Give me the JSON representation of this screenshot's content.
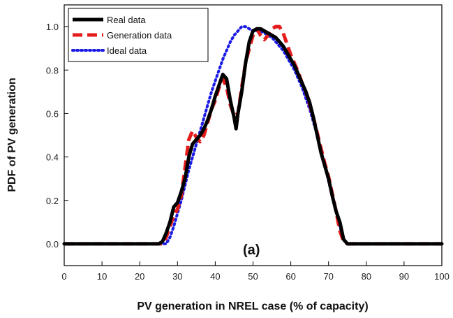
{
  "chart_data": {
    "type": "line",
    "title": "",
    "xlabel": "PV generation in NREL case (% of capacity)",
    "ylabel": "PDF of PV generation",
    "xlim": [
      0,
      100
    ],
    "ylim": [
      -0.1,
      1.1
    ],
    "xticks": [
      0,
      10,
      20,
      30,
      40,
      50,
      60,
      70,
      80,
      90,
      100
    ],
    "yticks": [
      0.0,
      0.2,
      0.4,
      0.6,
      0.8,
      1.0
    ],
    "xtick_labels": [
      "0",
      "10",
      "20",
      "30",
      "40",
      "50",
      "60",
      "70",
      "80",
      "90",
      "100"
    ],
    "ytick_labels": [
      "0.0",
      "0.2",
      "0.4",
      "0.6",
      "0.8",
      "1.0"
    ],
    "grid": false,
    "legend_position": "top-left",
    "annotation": "(a)",
    "series": [
      {
        "name": "Real data",
        "color": "#000000",
        "style": "solid",
        "points": [
          [
            0,
            0
          ],
          [
            25,
            0
          ],
          [
            26,
            0.01
          ],
          [
            27,
            0.05
          ],
          [
            28,
            0.1
          ],
          [
            29,
            0.17
          ],
          [
            30,
            0.19
          ],
          [
            31,
            0.24
          ],
          [
            32,
            0.3
          ],
          [
            33,
            0.4
          ],
          [
            34,
            0.46
          ],
          [
            35,
            0.48
          ],
          [
            36,
            0.5
          ],
          [
            37,
            0.53
          ],
          [
            38,
            0.57
          ],
          [
            39,
            0.62
          ],
          [
            40,
            0.68
          ],
          [
            41,
            0.73
          ],
          [
            42,
            0.78
          ],
          [
            43,
            0.76
          ],
          [
            44,
            0.66
          ],
          [
            45,
            0.58
          ],
          [
            45.5,
            0.53
          ],
          [
            46,
            0.6
          ],
          [
            47,
            0.7
          ],
          [
            48,
            0.83
          ],
          [
            49,
            0.93
          ],
          [
            50,
            0.98
          ],
          [
            51,
            0.99
          ],
          [
            52,
            0.99
          ],
          [
            53,
            0.98
          ],
          [
            54,
            0.97
          ],
          [
            55,
            0.96
          ],
          [
            56,
            0.95
          ],
          [
            57,
            0.93
          ],
          [
            58,
            0.91
          ],
          [
            59,
            0.88
          ],
          [
            60,
            0.85
          ],
          [
            61,
            0.82
          ],
          [
            62,
            0.78
          ],
          [
            63,
            0.74
          ],
          [
            64,
            0.7
          ],
          [
            65,
            0.65
          ],
          [
            66,
            0.58
          ],
          [
            67,
            0.5
          ],
          [
            68,
            0.42
          ],
          [
            69,
            0.36
          ],
          [
            70,
            0.3
          ],
          [
            71,
            0.22
          ],
          [
            72,
            0.15
          ],
          [
            73,
            0.1
          ],
          [
            74,
            0.02
          ],
          [
            75,
            0
          ],
          [
            100,
            0
          ]
        ]
      },
      {
        "name": "Generation data",
        "color": "#e51c1c",
        "style": "dashed",
        "points": [
          [
            0,
            0
          ],
          [
            26,
            0
          ],
          [
            27,
            0.03
          ],
          [
            28,
            0.08
          ],
          [
            29,
            0.13
          ],
          [
            30,
            0.16
          ],
          [
            31,
            0.22
          ],
          [
            32,
            0.35
          ],
          [
            33,
            0.48
          ],
          [
            34,
            0.52
          ],
          [
            35,
            0.49
          ],
          [
            36,
            0.47
          ],
          [
            37,
            0.5
          ],
          [
            38,
            0.56
          ],
          [
            39,
            0.62
          ],
          [
            40,
            0.66
          ],
          [
            41,
            0.72
          ],
          [
            42,
            0.76
          ],
          [
            43,
            0.72
          ],
          [
            44,
            0.64
          ],
          [
            45,
            0.59
          ],
          [
            46,
            0.6
          ],
          [
            47,
            0.72
          ],
          [
            48,
            0.83
          ],
          [
            49,
            0.9
          ],
          [
            50,
            0.96
          ],
          [
            51,
            0.99
          ],
          [
            52,
            0.96
          ],
          [
            53,
            0.94
          ],
          [
            54,
            0.96
          ],
          [
            55,
            0.99
          ],
          [
            56,
            1.0
          ],
          [
            57,
            1.0
          ],
          [
            58,
            0.97
          ],
          [
            59,
            0.92
          ],
          [
            60,
            0.87
          ],
          [
            61,
            0.83
          ],
          [
            62,
            0.79
          ],
          [
            63,
            0.74
          ],
          [
            64,
            0.7
          ],
          [
            65,
            0.64
          ],
          [
            66,
            0.58
          ],
          [
            67,
            0.51
          ],
          [
            68,
            0.44
          ],
          [
            69,
            0.37
          ],
          [
            70,
            0.31
          ],
          [
            71,
            0.23
          ],
          [
            72,
            0.15
          ],
          [
            73,
            0.06
          ],
          [
            74,
            0.01
          ],
          [
            75,
            0
          ],
          [
            100,
            0
          ]
        ]
      },
      {
        "name": "Ideal data",
        "color": "#1a1ae6",
        "style": "dotted",
        "points": [
          [
            0,
            0
          ],
          [
            27,
            0
          ],
          [
            28,
            0.03
          ],
          [
            29,
            0.08
          ],
          [
            30,
            0.14
          ],
          [
            31,
            0.2
          ],
          [
            32,
            0.27
          ],
          [
            33,
            0.34
          ],
          [
            34,
            0.4
          ],
          [
            35,
            0.46
          ],
          [
            36,
            0.52
          ],
          [
            37,
            0.58
          ],
          [
            38,
            0.64
          ],
          [
            39,
            0.7
          ],
          [
            40,
            0.75
          ],
          [
            41,
            0.8
          ],
          [
            42,
            0.85
          ],
          [
            43,
            0.89
          ],
          [
            44,
            0.93
          ],
          [
            45,
            0.96
          ],
          [
            46,
            0.98
          ],
          [
            47,
            1.0
          ],
          [
            48,
            1.0
          ],
          [
            49,
            0.99
          ],
          [
            50,
            0.98
          ],
          [
            51,
            0.98
          ],
          [
            52,
            0.98
          ],
          [
            53,
            0.97
          ],
          [
            54,
            0.96
          ],
          [
            55,
            0.95
          ],
          [
            56,
            0.93
          ],
          [
            57,
            0.91
          ],
          [
            58,
            0.89
          ],
          [
            59,
            0.86
          ],
          [
            60,
            0.83
          ],
          [
            61,
            0.8
          ],
          [
            62,
            0.76
          ],
          [
            63,
            0.72
          ],
          [
            64,
            0.67
          ],
          [
            65,
            0.62
          ],
          [
            66,
            0.56
          ],
          [
            67,
            0.5
          ],
          [
            68,
            0.43
          ],
          [
            69,
            0.36
          ],
          [
            70,
            0.29
          ],
          [
            71,
            0.22
          ],
          [
            72,
            0.15
          ],
          [
            73,
            0.08
          ],
          [
            74,
            0.02
          ],
          [
            75,
            0
          ],
          [
            100,
            0
          ]
        ]
      }
    ]
  }
}
